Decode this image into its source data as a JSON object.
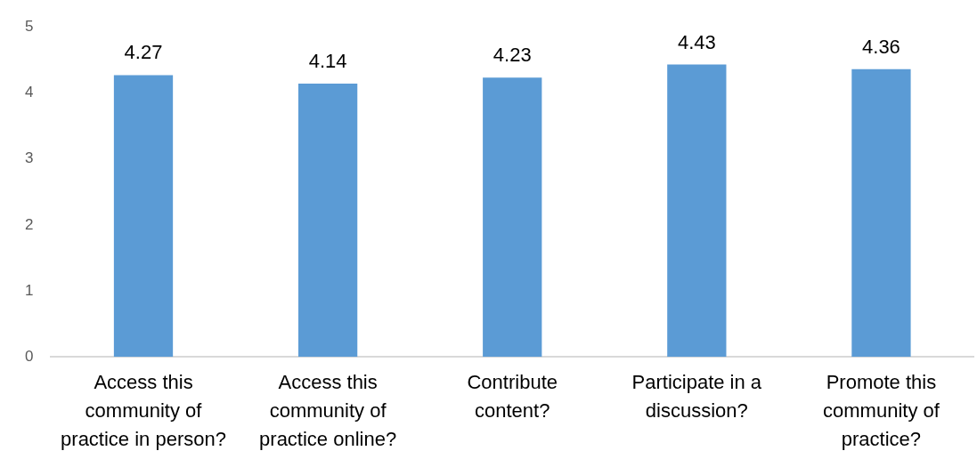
{
  "chart_data": {
    "type": "bar",
    "categories": [
      "Access this community of practice in person?",
      "Access this community of practice online?",
      "Contribute content?",
      "Participate in a discussion?",
      "Promote this community of practice?"
    ],
    "values": [
      4.27,
      4.14,
      4.23,
      4.43,
      4.36
    ],
    "color": "#5b9bd5",
    "ylim": [
      0,
      5
    ],
    "yticks": [
      0,
      1,
      2,
      3,
      4,
      5
    ],
    "data_labels": true
  }
}
